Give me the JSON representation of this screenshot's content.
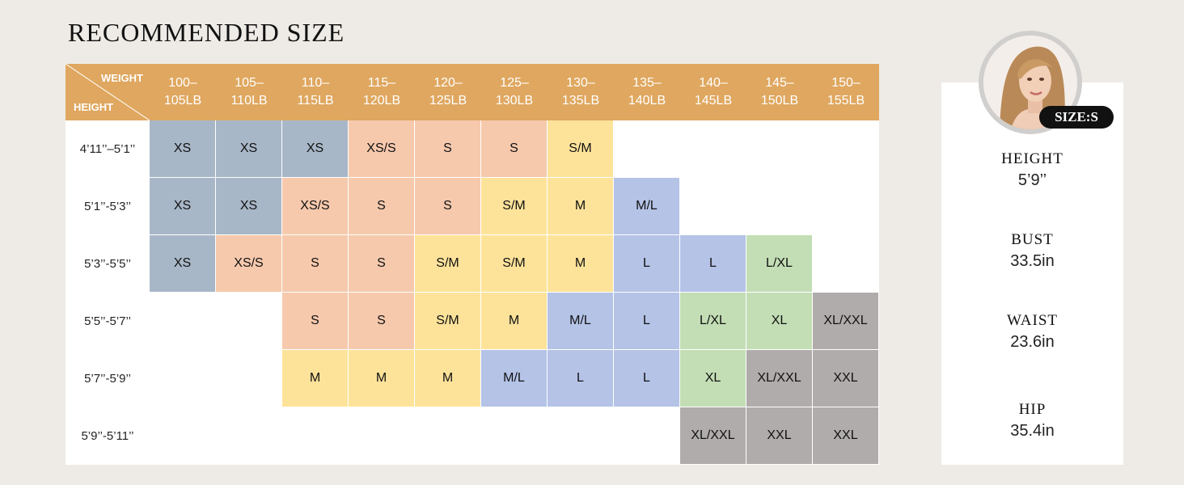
{
  "title": "RECOMMENDED SIZE",
  "table": {
    "corner_weight": "WEIGHT",
    "corner_height": "HEIGHT",
    "weights": [
      [
        "100–",
        "105LB"
      ],
      [
        "105–",
        "110LB"
      ],
      [
        "110–",
        "115LB"
      ],
      [
        "115–",
        "120LB"
      ],
      [
        "120–",
        "125LB"
      ],
      [
        "125–",
        "130LB"
      ],
      [
        "130–",
        "135LB"
      ],
      [
        "135–",
        "140LB"
      ],
      [
        "140–",
        "145LB"
      ],
      [
        "145–",
        "150LB"
      ],
      [
        "150–",
        "155LB"
      ]
    ],
    "heights": [
      "4’11’’–5’1’’",
      "5’1’’-5’3’’",
      "5’3’’-5’5’’",
      "5’5’’-5’7’’",
      "5’7’’-5’9’’",
      "5’9’’-5’11’’"
    ],
    "rows": [
      [
        "XS",
        "XS",
        "XS",
        "XS/S",
        "S",
        "S",
        "S/M",
        "",
        "",
        "",
        ""
      ],
      [
        "XS",
        "XS",
        "XS/S",
        "S",
        "S",
        "S/M",
        "M",
        "M/L",
        "",
        "",
        ""
      ],
      [
        "XS",
        "XS/S",
        "S",
        "S",
        "S/M",
        "S/M",
        "M",
        "L",
        "L",
        "L/XL",
        ""
      ],
      [
        "",
        "",
        "S",
        "S",
        "S/M",
        "M",
        "M/L",
        "L",
        "L/XL",
        "XL",
        "XL/XXL"
      ],
      [
        "",
        "",
        "M",
        "M",
        "M",
        "M/L",
        "L",
        "L",
        "XL",
        "XL/XXL",
        "XXL"
      ],
      [
        "",
        "",
        "",
        "",
        "",
        "",
        "",
        "",
        "XL/XXL",
        "XXL",
        "XXL"
      ]
    ]
  },
  "size_colors": {
    "XS": "#a8b7c7",
    "XS/S": "#f6c9ad",
    "S": "#f6c9ad",
    "S/M": "#fde39a",
    "M": "#fde39a",
    "M/L": "#b4c3e6",
    "L": "#b4c3e6",
    "L/XL": "#c3deb5",
    "XL": "#c3deb5",
    "XL/XXL": "#b0acab",
    "XXL": "#b0acab"
  },
  "colors": {
    "header": "#dfa75f",
    "background": "#eeebe6"
  },
  "model": {
    "size_badge": "SIZE:S",
    "measurements": [
      {
        "label": "HEIGHT",
        "value": "5’9’’"
      },
      {
        "label": "BUST",
        "value": "33.5in"
      },
      {
        "label": "WAIST",
        "value": "23.6in"
      },
      {
        "label": "HIP",
        "value": "35.4in"
      }
    ]
  }
}
